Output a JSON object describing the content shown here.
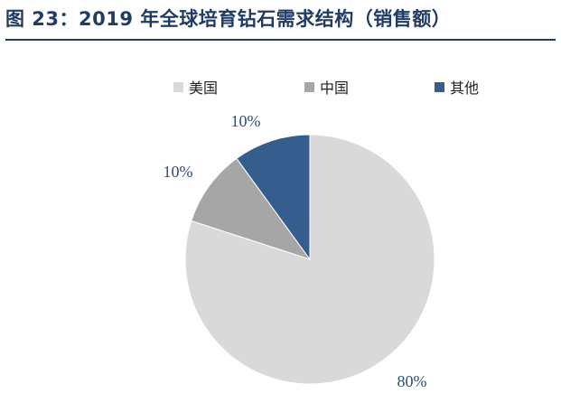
{
  "figure": {
    "title": "图 23：2019 年全球培育钻石需求结构（销售额）"
  },
  "colors": {
    "title": "#1f3b66",
    "series": [
      "#d9d9d9",
      "#a6a6a6",
      "#355e8e"
    ],
    "label": "#2d4f80"
  },
  "chart_data": {
    "type": "pie",
    "title": "图 23：2019 年全球培育钻石需求结构（销售额）",
    "categories": [
      "美国",
      "中国",
      "其他"
    ],
    "values": [
      80,
      10,
      10
    ],
    "data_labels": [
      "80%",
      "10%",
      "10%"
    ],
    "legend": "top",
    "start_angle": "12 o'clock",
    "direction": "counterclockwise"
  }
}
